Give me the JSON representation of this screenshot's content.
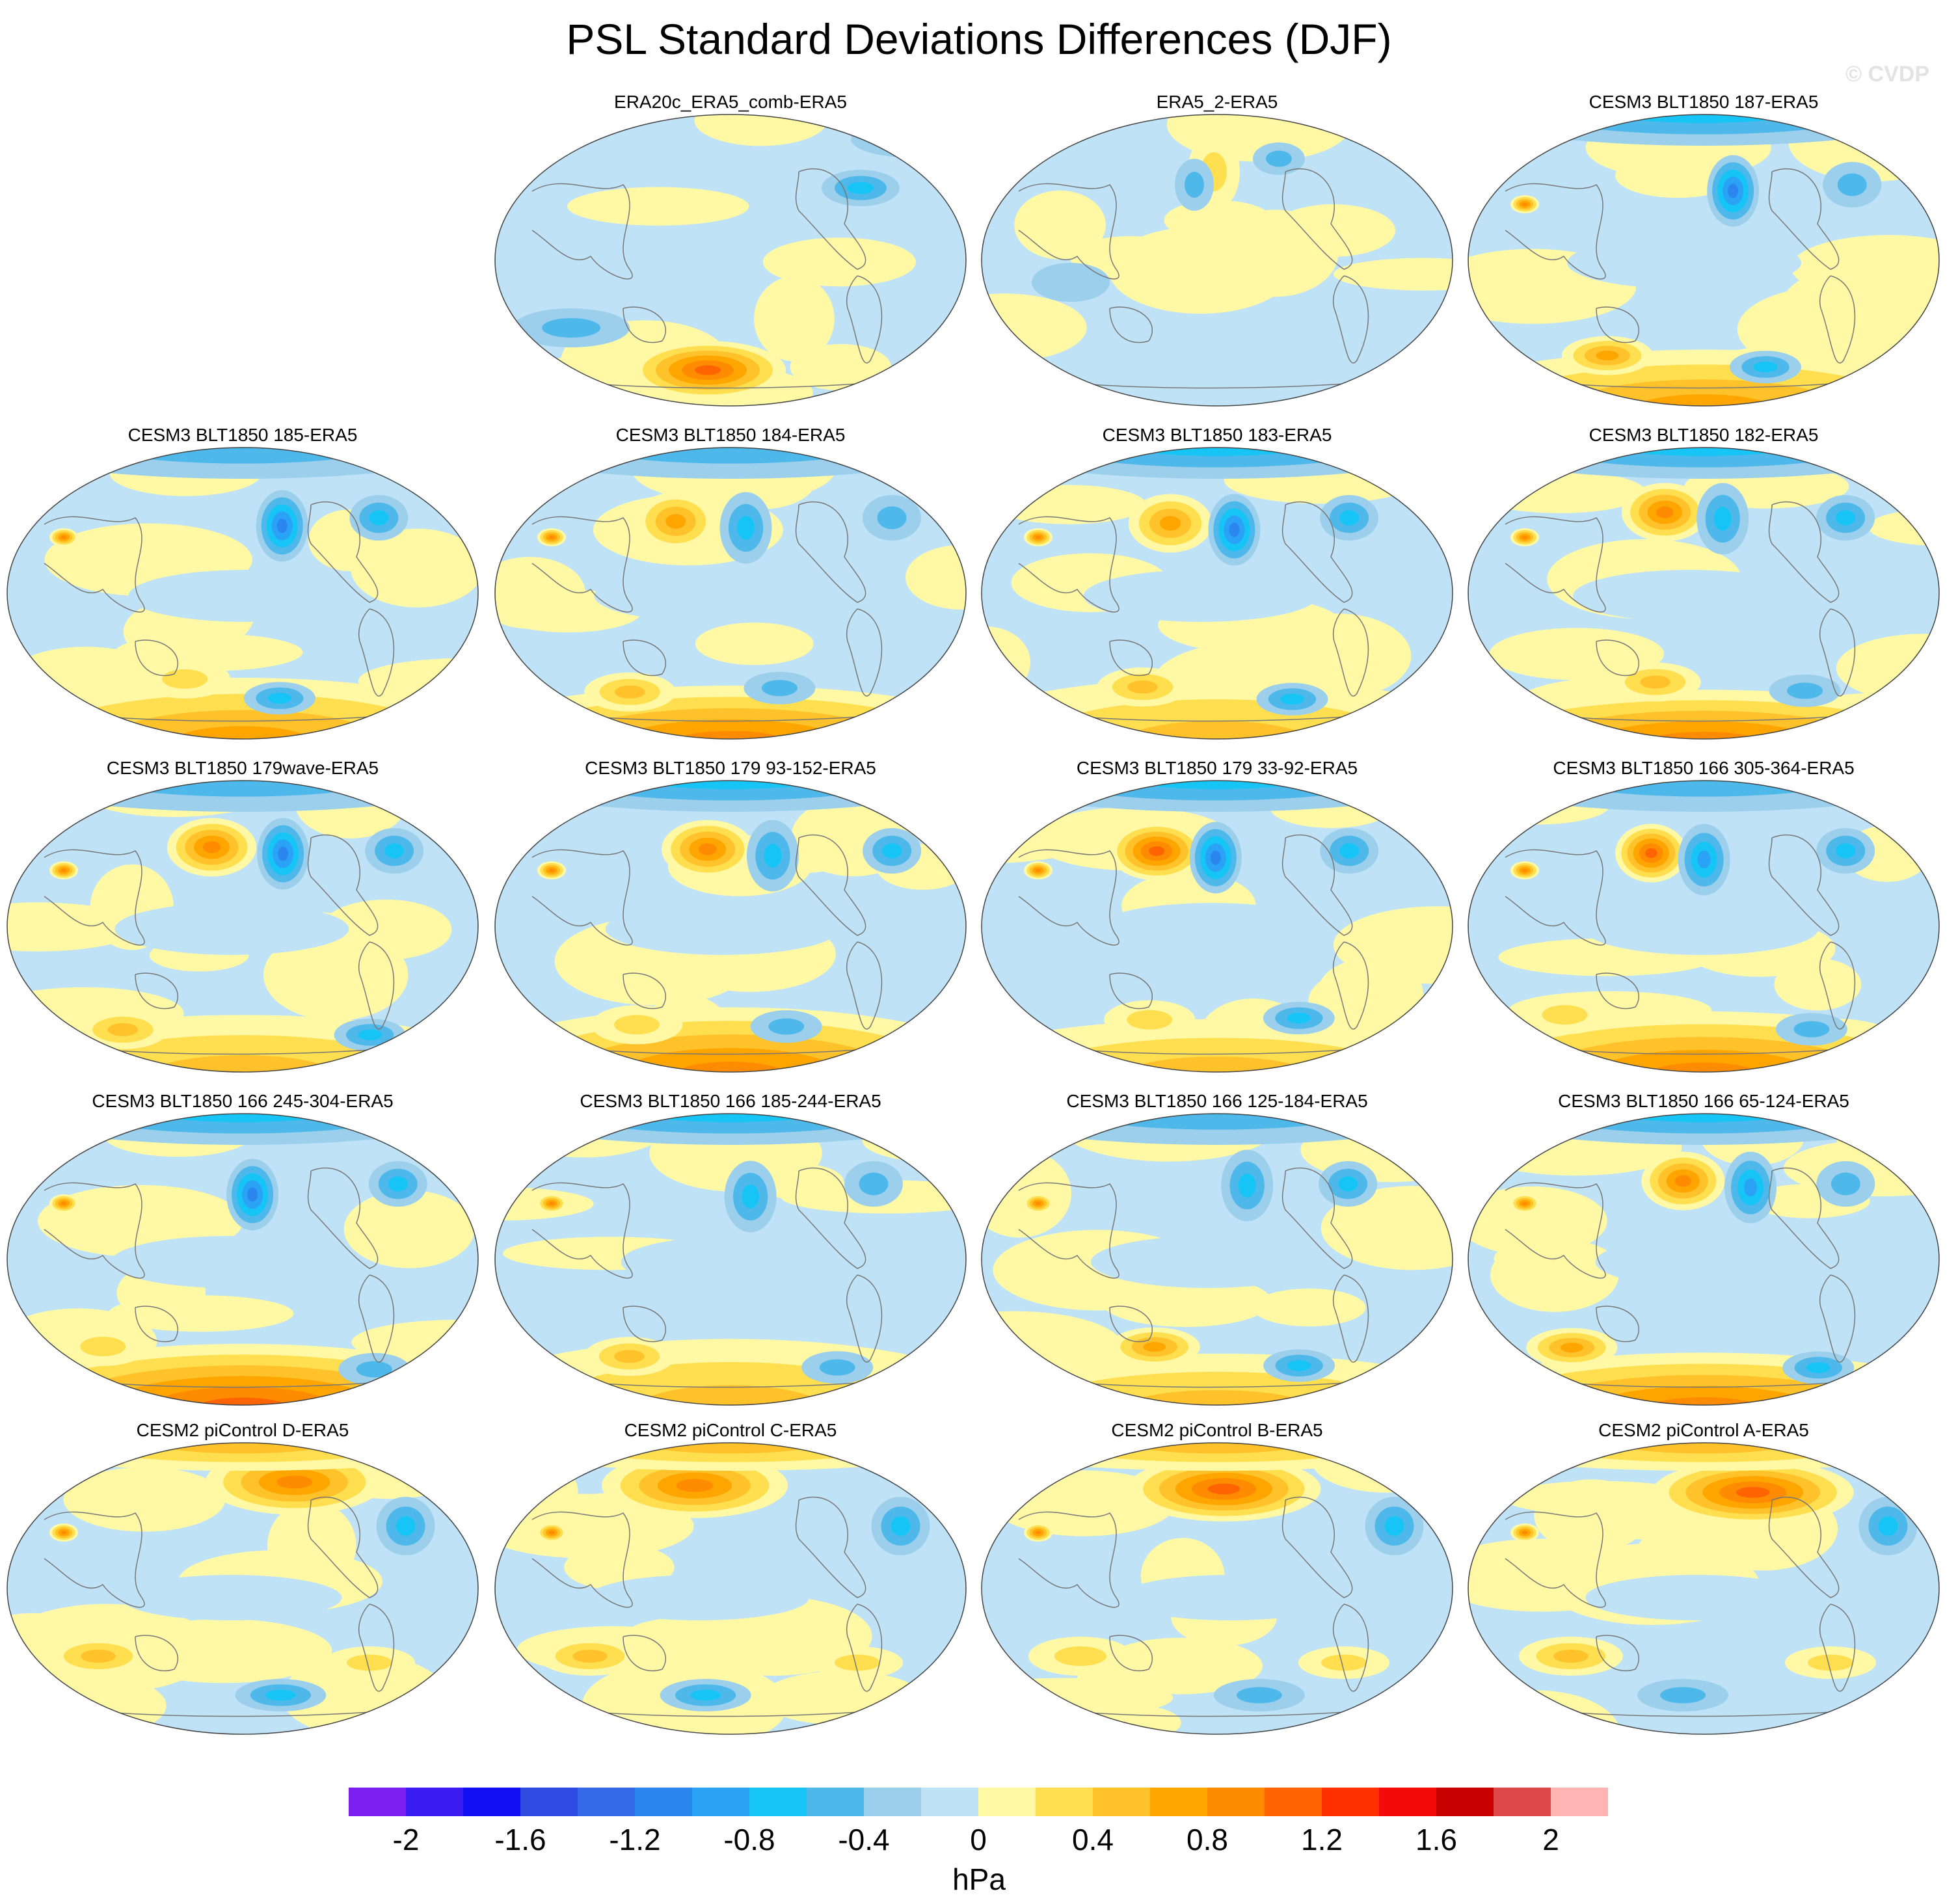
{
  "title": "PSL Standard Deviations Differences (DJF)",
  "watermark": "© CVDP",
  "panels": [
    {
      "label": "ERA20c_ERA5_comb-ERA5",
      "pattern": "era20c"
    },
    {
      "label": "ERA5_2-ERA5",
      "pattern": "era5_2"
    },
    {
      "label": "CESM3 BLT1850 187-ERA5",
      "pattern": "cesm3"
    },
    {
      "label": "CESM3 BLT1850 185-ERA5",
      "pattern": "cesm3"
    },
    {
      "label": "CESM3 BLT1850 184-ERA5",
      "pattern": "cesm3"
    },
    {
      "label": "CESM3 BLT1850 183-ERA5",
      "pattern": "cesm3"
    },
    {
      "label": "CESM3 BLT1850 182-ERA5",
      "pattern": "cesm3"
    },
    {
      "label": "CESM3 BLT1850 179wave-ERA5",
      "pattern": "cesm3"
    },
    {
      "label": "CESM3 BLT1850 179 93-152-ERA5",
      "pattern": "cesm3"
    },
    {
      "label": "CESM3 BLT1850 179 33-92-ERA5",
      "pattern": "cesm3"
    },
    {
      "label": "CESM3 BLT1850 166 305-364-ERA5",
      "pattern": "cesm3"
    },
    {
      "label": "CESM3 BLT1850 166 245-304-ERA5",
      "pattern": "cesm3"
    },
    {
      "label": "CESM3 BLT1850 166 185-244-ERA5",
      "pattern": "cesm3"
    },
    {
      "label": "CESM3 BLT1850 166 125-184-ERA5",
      "pattern": "cesm3"
    },
    {
      "label": "CESM3 BLT1850 166 65-124-ERA5",
      "pattern": "cesm3"
    },
    {
      "label": "CESM2 piControl D-ERA5",
      "pattern": "cesm2"
    },
    {
      "label": "CESM2 piControl C-ERA5",
      "pattern": "cesm2"
    },
    {
      "label": "CESM2 piControl B-ERA5",
      "pattern": "cesm2"
    },
    {
      "label": "CESM2 piControl A-ERA5",
      "pattern": "cesm2"
    }
  ],
  "colorbar": {
    "colors": [
      "#7a1ff0",
      "#3b1cf2",
      "#1010f2",
      "#2e4be2",
      "#3568e6",
      "#2c86f0",
      "#2aa2f5",
      "#16c4f6",
      "#4fb8ea",
      "#9ccfec",
      "#bfe2f6",
      "#fff9a6",
      "#ffdf4f",
      "#ffc22a",
      "#ffa500",
      "#ff8c00",
      "#ff6400",
      "#ff3000",
      "#f50a0a",
      "#c80000",
      "#df4848",
      "#ffb4b4"
    ],
    "tick_labels": [
      "-2",
      "-1.6",
      "-1.2",
      "-0.8",
      "-0.4",
      "0",
      "0.4",
      "0.8",
      "1.2",
      "1.6",
      "2"
    ],
    "units": "hPa"
  }
}
